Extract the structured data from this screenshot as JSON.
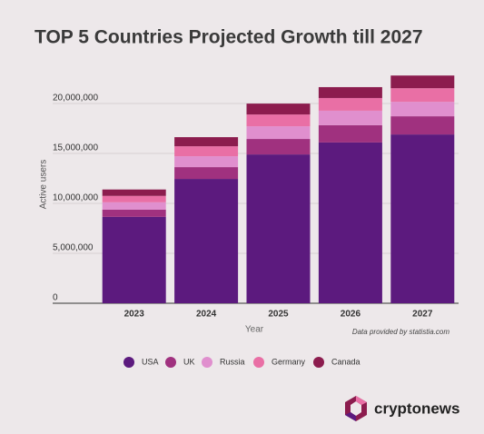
{
  "chart_data": {
    "type": "stacked-bar",
    "title": "TOP 5 Countries Projected Growth till 2027",
    "categories": [
      "2023",
      "2024",
      "2025",
      "2026",
      "2027"
    ],
    "series": [
      {
        "name": "USA",
        "color": "#5c1a7e",
        "values": [
          8650000,
          12450000,
          14900000,
          16100000,
          16900000
        ]
      },
      {
        "name": "UK",
        "color": "#a0317f",
        "values": [
          730000,
          1180000,
          1550000,
          1730000,
          1820000
        ]
      },
      {
        "name": "Russia",
        "color": "#e08fce",
        "values": [
          730000,
          1090000,
          1270000,
          1450000,
          1450000
        ]
      },
      {
        "name": "Germany",
        "color": "#e96fa5",
        "values": [
          640000,
          1000000,
          1180000,
          1270000,
          1360000
        ]
      },
      {
        "name": "Canada",
        "color": "#8c1c4e",
        "values": [
          640000,
          910000,
          1090000,
          1090000,
          1270000
        ]
      }
    ],
    "ylim": [
      0,
      24000000
    ],
    "yticks": [
      0,
      {
        "value": 5000000,
        "label": "5,000,000"
      },
      {
        "value": 10000000,
        "label": "10,000,000"
      },
      {
        "value": 15000000,
        "label": "15,000,000"
      },
      {
        "value": 20000000,
        "label": "20,000,000"
      }
    ],
    "xlabel": "Year",
    "ylabel": "Active users",
    "source": "Data provided by statistia.com",
    "grid": true,
    "legend": "bottom",
    "brand": "cryptonews"
  }
}
